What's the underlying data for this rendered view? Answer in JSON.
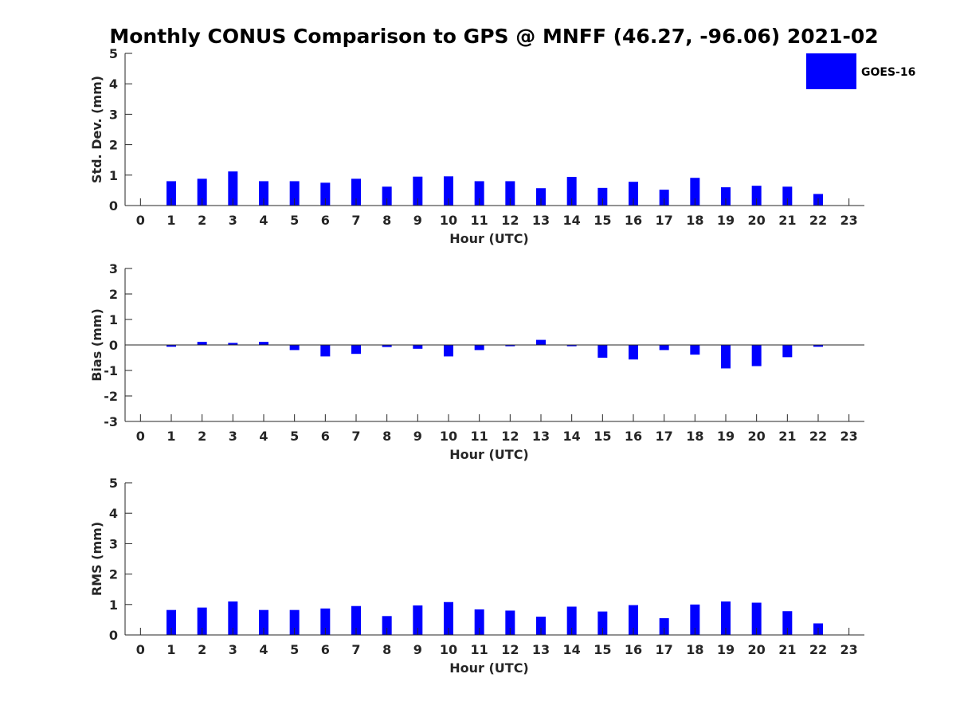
{
  "title": "Monthly CONUS Comparison to GPS @ MNFF (46.27, -96.06) 2021-02",
  "legend": {
    "label": "GOES-16",
    "color": "#0000ff",
    "position": "top-right"
  },
  "chart_data": [
    {
      "type": "bar",
      "name": "std-dev",
      "xlabel": "Hour (UTC)",
      "ylabel": "Std. Dev. (mm)",
      "xlim": [
        -0.5,
        23.5
      ],
      "ylim": [
        0,
        5
      ],
      "xticks": [
        0,
        1,
        2,
        3,
        4,
        5,
        6,
        7,
        8,
        9,
        10,
        11,
        12,
        13,
        14,
        15,
        16,
        17,
        18,
        19,
        20,
        21,
        22,
        23
      ],
      "yticks": [
        0,
        1,
        2,
        3,
        4,
        5
      ],
      "categories": [
        0,
        1,
        2,
        3,
        4,
        5,
        6,
        7,
        8,
        9,
        10,
        11,
        12,
        13,
        14,
        15,
        16,
        17,
        18,
        19,
        20,
        21,
        22,
        23
      ],
      "series": [
        {
          "name": "GOES-16",
          "color": "#0000ff",
          "values": [
            null,
            0.8,
            0.88,
            1.12,
            0.8,
            0.8,
            0.75,
            0.88,
            0.62,
            0.95,
            0.96,
            0.8,
            0.8,
            0.57,
            0.94,
            0.58,
            0.78,
            0.52,
            0.91,
            0.6,
            0.65,
            0.62,
            0.38,
            null
          ]
        }
      ]
    },
    {
      "type": "bar",
      "name": "bias",
      "xlabel": "Hour (UTC)",
      "ylabel": "Bias (mm)",
      "xlim": [
        -0.5,
        23.5
      ],
      "ylim": [
        -3,
        3
      ],
      "xticks": [
        0,
        1,
        2,
        3,
        4,
        5,
        6,
        7,
        8,
        9,
        10,
        11,
        12,
        13,
        14,
        15,
        16,
        17,
        18,
        19,
        20,
        21,
        22,
        23
      ],
      "yticks": [
        -3,
        -2,
        -1,
        0,
        1,
        2,
        3
      ],
      "zero_line": true,
      "categories": [
        0,
        1,
        2,
        3,
        4,
        5,
        6,
        7,
        8,
        9,
        10,
        11,
        12,
        13,
        14,
        15,
        16,
        17,
        18,
        19,
        20,
        21,
        22,
        23
      ],
      "series": [
        {
          "name": "GOES-16",
          "color": "#0000ff",
          "values": [
            null,
            -0.07,
            0.12,
            0.08,
            0.12,
            -0.2,
            -0.45,
            -0.35,
            -0.08,
            -0.15,
            -0.45,
            -0.2,
            -0.05,
            0.2,
            -0.05,
            -0.5,
            -0.57,
            -0.2,
            -0.38,
            -0.92,
            -0.83,
            -0.48,
            -0.07,
            null
          ]
        }
      ]
    },
    {
      "type": "bar",
      "name": "rms",
      "xlabel": "Hour (UTC)",
      "ylabel": "RMS (mm)",
      "xlim": [
        -0.5,
        23.5
      ],
      "ylim": [
        0,
        5
      ],
      "xticks": [
        0,
        1,
        2,
        3,
        4,
        5,
        6,
        7,
        8,
        9,
        10,
        11,
        12,
        13,
        14,
        15,
        16,
        17,
        18,
        19,
        20,
        21,
        22,
        23
      ],
      "yticks": [
        0,
        1,
        2,
        3,
        4,
        5
      ],
      "categories": [
        0,
        1,
        2,
        3,
        4,
        5,
        6,
        7,
        8,
        9,
        10,
        11,
        12,
        13,
        14,
        15,
        16,
        17,
        18,
        19,
        20,
        21,
        22,
        23
      ],
      "series": [
        {
          "name": "GOES-16",
          "color": "#0000ff",
          "values": [
            null,
            0.82,
            0.9,
            1.1,
            0.82,
            0.82,
            0.87,
            0.95,
            0.62,
            0.97,
            1.08,
            0.84,
            0.8,
            0.6,
            0.93,
            0.77,
            0.98,
            0.55,
            1.0,
            1.1,
            1.06,
            0.78,
            0.38,
            null
          ]
        }
      ]
    }
  ]
}
